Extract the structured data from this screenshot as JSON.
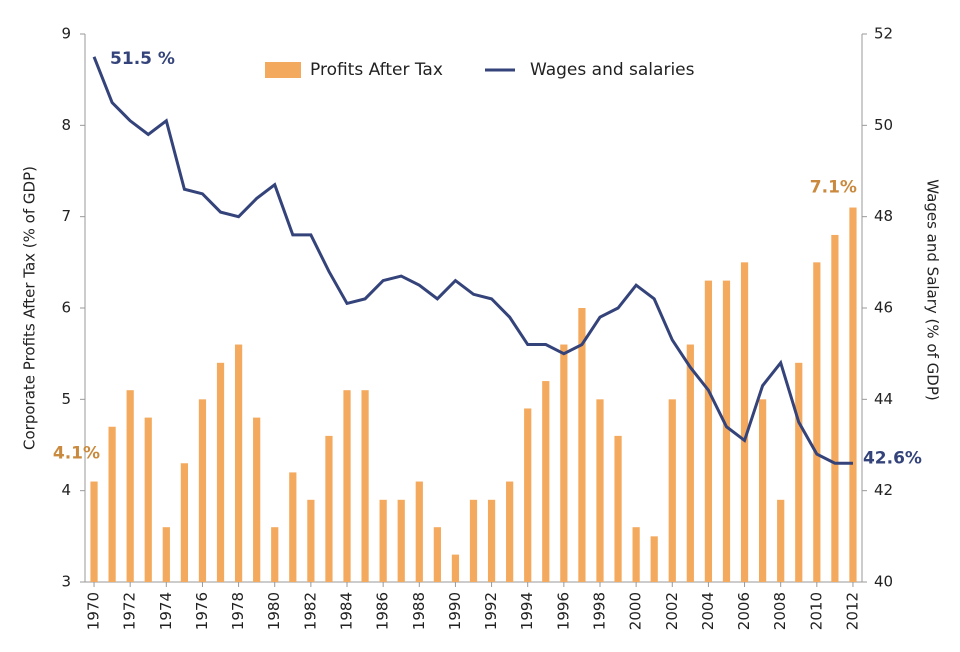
{
  "chart_data": {
    "type": "bar-line",
    "y_label": "Corporate Profits After Tax (% of GDP)",
    "y2_label": "Wages and Salary (% of GDP)",
    "x": [
      1970,
      1971,
      1972,
      1973,
      1974,
      1975,
      1976,
      1977,
      1978,
      1979,
      1980,
      1981,
      1982,
      1983,
      1984,
      1985,
      1986,
      1987,
      1988,
      1989,
      1990,
      1991,
      1992,
      1993,
      1994,
      1995,
      1996,
      1997,
      1998,
      1999,
      2000,
      2001,
      2002,
      2003,
      2004,
      2005,
      2006,
      2007,
      2008,
      2009,
      2010,
      2011,
      2012
    ],
    "xlim": [
      1969.5,
      2012.5
    ],
    "xticks": [
      1970,
      1972,
      1974,
      1976,
      1978,
      1980,
      1982,
      1984,
      1986,
      1988,
      1990,
      1992,
      1994,
      1996,
      1998,
      2000,
      2002,
      2004,
      2006,
      2008,
      2010,
      2012
    ],
    "ylim": [
      3,
      9
    ],
    "yticks": [
      3,
      4,
      5,
      6,
      7,
      8,
      9
    ],
    "y2lim": [
      40,
      52
    ],
    "y2ticks": [
      40,
      42,
      44,
      46,
      48,
      50,
      52
    ],
    "legend": "top",
    "series": [
      {
        "name": "Profits After Tax",
        "type": "bar",
        "color": "#f4aa5e",
        "values": [
          4.1,
          4.7,
          5.1,
          4.8,
          3.6,
          4.3,
          5.0,
          5.4,
          5.6,
          4.8,
          3.6,
          4.2,
          3.9,
          4.6,
          5.1,
          5.1,
          3.9,
          3.9,
          4.1,
          3.6,
          3.3,
          3.9,
          3.9,
          4.1,
          4.9,
          5.2,
          5.6,
          6.0,
          5.0,
          4.6,
          3.6,
          3.5,
          5.0,
          5.6,
          6.3,
          6.3,
          6.5,
          5.0,
          3.9,
          5.4,
          6.5,
          6.8,
          7.1
        ]
      },
      {
        "name": "Wages and salaries",
        "type": "line",
        "axis": "y2",
        "color": "#34437a",
        "values": [
          51.5,
          50.5,
          50.1,
          49.8,
          50.1,
          48.6,
          48.5,
          48.1,
          48.0,
          48.4,
          48.7,
          47.6,
          47.6,
          46.8,
          46.1,
          46.2,
          46.6,
          46.7,
          46.5,
          46.2,
          46.6,
          46.3,
          46.2,
          45.8,
          45.2,
          45.2,
          45.0,
          45.2,
          45.8,
          46.0,
          46.5,
          46.2,
          45.3,
          44.7,
          44.2,
          43.4,
          43.1,
          44.3,
          44.8,
          43.5,
          42.8,
          42.6,
          42.6
        ]
      }
    ],
    "annotations": [
      "51.5 %",
      "4.1%",
      "7.1%",
      "42.6%"
    ]
  }
}
